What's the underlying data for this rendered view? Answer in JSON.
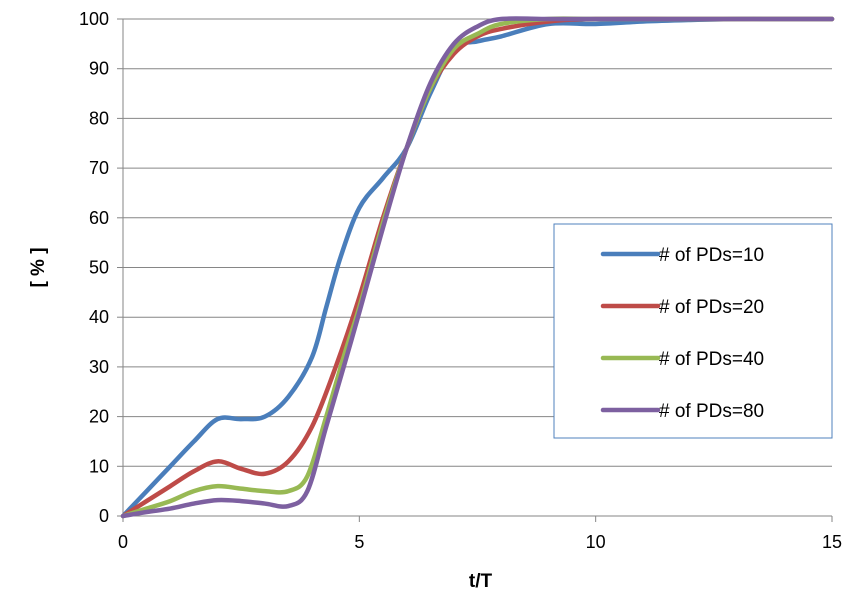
{
  "chart_data": {
    "type": "line",
    "xlabel": "t/T",
    "ylabel": "[ % ]",
    "xlim": [
      0,
      15
    ],
    "ylim": [
      0,
      100
    ],
    "x_ticks": [
      "0",
      "5",
      "10",
      "15"
    ],
    "y_ticks": [
      "0",
      "10",
      "20",
      "30",
      "40",
      "50",
      "60",
      "70",
      "80",
      "90",
      "100"
    ],
    "grid": "horizontal",
    "legend_position": "right",
    "series": [
      {
        "name": "# of PDs=10",
        "color": "#4a7ebb",
        "x": [
          0,
          0.5,
          1,
          1.5,
          2,
          2.5,
          3,
          3.5,
          4,
          4.3,
          4.6,
          5,
          5.5,
          6,
          6.5,
          7,
          7.5,
          8,
          9,
          10,
          11,
          12,
          13,
          14,
          15
        ],
        "y": [
          0,
          5,
          10,
          15,
          19.5,
          19.5,
          20,
          24,
          32,
          42,
          52,
          62,
          68,
          74,
          85,
          94,
          95.5,
          96.5,
          99,
          99,
          99.5,
          99.8,
          100,
          100,
          100
        ]
      },
      {
        "name": "# of PDs=20",
        "color": "#be4b48",
        "x": [
          0,
          0.5,
          1,
          1.5,
          2,
          2.5,
          3,
          3.5,
          4,
          4.5,
          5,
          5.5,
          6,
          6.5,
          7,
          7.5,
          8,
          9,
          10,
          12,
          15
        ],
        "y": [
          0,
          3,
          6,
          9,
          11,
          9.5,
          8.5,
          11,
          18,
          30,
          44,
          60,
          74,
          86,
          93,
          96.5,
          98,
          99.5,
          100,
          100,
          100
        ]
      },
      {
        "name": "# of PDs=40",
        "color": "#98b954",
        "x": [
          0,
          0.5,
          1,
          1.5,
          2,
          2.5,
          3,
          3.5,
          3.9,
          4.3,
          4.7,
          5,
          5.5,
          6,
          6.5,
          7,
          7.5,
          8,
          9,
          10,
          12,
          15
        ],
        "y": [
          0,
          1.5,
          3,
          5,
          6,
          5.5,
          5,
          5,
          8,
          20,
          33,
          42,
          59,
          74,
          86,
          94,
          97,
          99,
          100,
          100,
          100,
          100
        ]
      },
      {
        "name": "# of PDs=80",
        "color": "#7d60a0",
        "x": [
          0,
          0.5,
          1,
          1.5,
          2,
          2.5,
          3,
          3.5,
          3.9,
          4.3,
          4.7,
          5,
          5.5,
          6,
          6.5,
          7,
          7.5,
          8,
          9,
          10,
          12,
          15
        ],
        "y": [
          0,
          0.8,
          1.5,
          2.5,
          3.2,
          3,
          2.5,
          2,
          5,
          18,
          31,
          41,
          58,
          74,
          87,
          95,
          98.5,
          100,
          100,
          100,
          100,
          100
        ]
      }
    ]
  }
}
